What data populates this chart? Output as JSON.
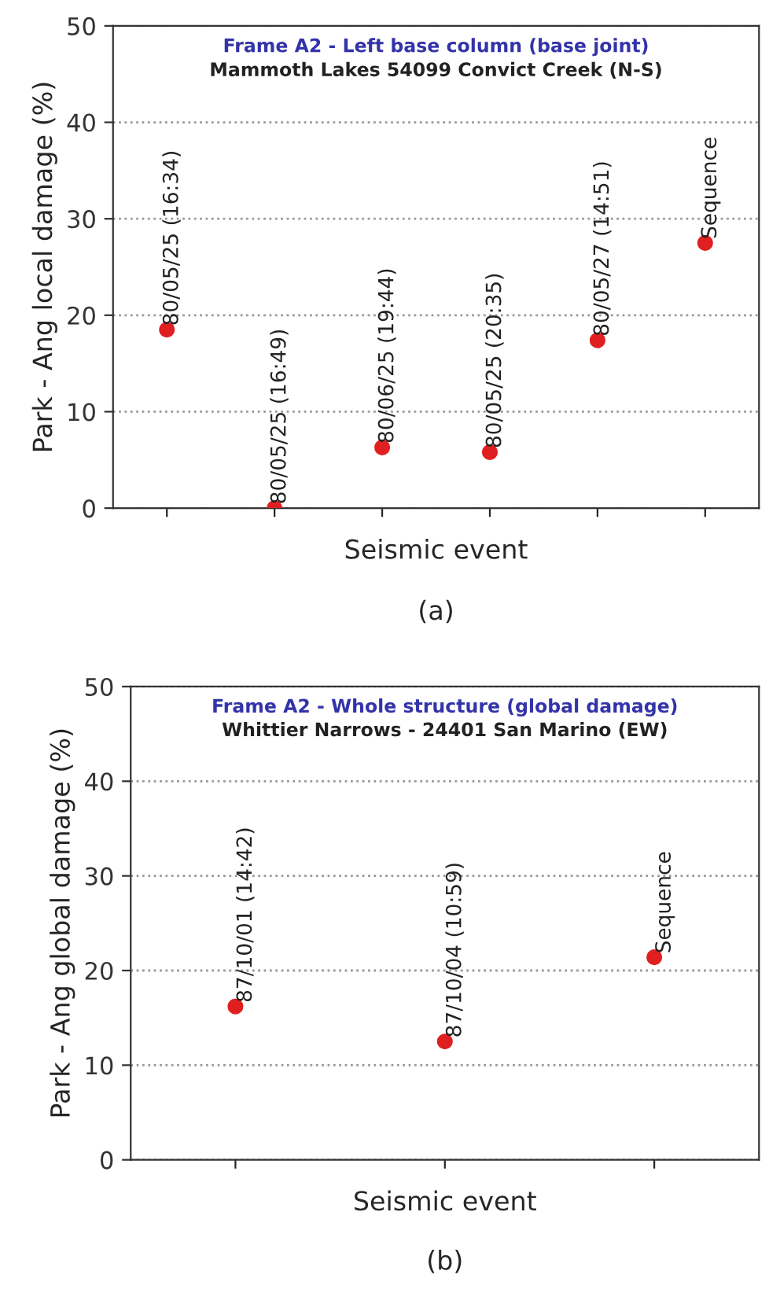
{
  "chart_data": [
    {
      "type": "scatter",
      "title": "Frame A2 - Left base column (base joint)",
      "subtitle": "Mammoth Lakes 54099 Convict Creek (N-S)",
      "xlabel": "Seismic event",
      "ylabel": "Park - Ang local damage (%)",
      "annotations": [
        "(a)"
      ],
      "categories": [
        "80/05/25 (16:34)",
        "80/05/25 (16:49)",
        "80/06/25 (19:44)",
        "80/05/25 (20:35)",
        "80/05/27 (14:51)",
        "Sequence"
      ],
      "series": [
        {
          "color": "#e02020",
          "values": [
            18.5,
            0,
            6.3,
            5.8,
            17.4,
            27.5
          ]
        }
      ],
      "ylim": [
        0,
        50
      ],
      "yticks": [
        0,
        10,
        20,
        30,
        40,
        50
      ],
      "grid": "y",
      "marker": "circle",
      "tick_labels": "y"
    },
    {
      "type": "scatter",
      "title": "Frame A2 - Whole structure (global damage)",
      "subtitle": "Whittier Narrows - 24401 San Marino (EW)",
      "xlabel": "Seismic event",
      "ylabel": "Park - Ang global damage (%)",
      "annotations": [
        "(b)"
      ],
      "categories": [
        "87/10/01 (14:42)",
        "87/10/04 (10:59)",
        "Sequence"
      ],
      "series": [
        {
          "color": "#e02020",
          "values": [
            16.2,
            12.5,
            21.4
          ]
        }
      ],
      "ylim": [
        0,
        50
      ],
      "yticks": [
        0,
        10,
        20,
        30,
        40,
        50
      ],
      "grid": "y",
      "marker": "circle",
      "tick_labels": "y"
    }
  ]
}
